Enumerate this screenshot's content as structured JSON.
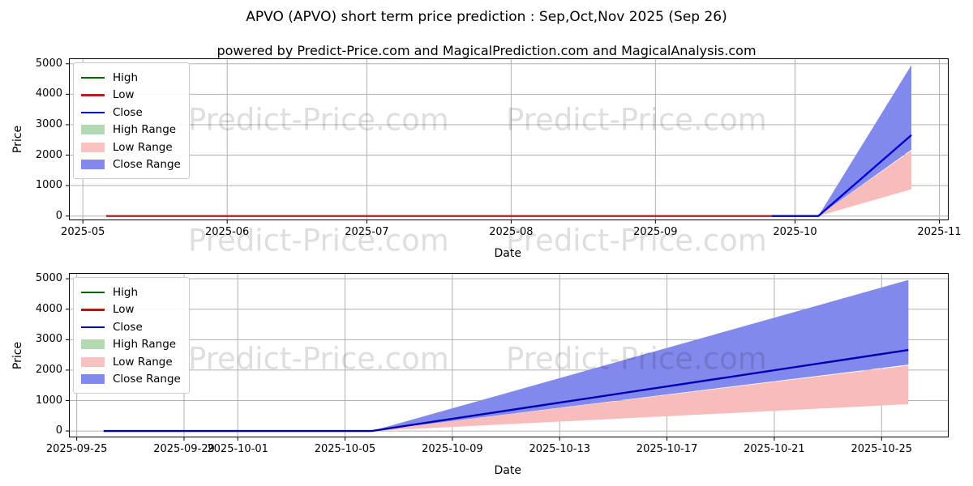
{
  "title": "APVO (APVO) short term price prediction : Sep,Oct,Nov 2025 (Sep 26)",
  "subtitle": "powered by Predict-Price.com and MagicalPrediction.com and MagicalAnalysis.com",
  "watermark": {
    "text": "Predict-Price.com"
  },
  "colors": {
    "grid": "#b0b0b0",
    "spine": "#000000",
    "watermark": "rgba(0,0,0,0.13)",
    "legend_border": "#cccccc"
  },
  "chart_data": [
    {
      "type": "line",
      "name": "full-history-chart",
      "xlabel": "Date",
      "ylabel": "Price",
      "x_domain": [
        "2025-04-28",
        "2025-11-03"
      ],
      "y_domain": [
        -140,
        5180
      ],
      "grid": true,
      "legend_position": "upper-left",
      "x_ticks": [
        {
          "date": "2025-05-01",
          "label": "2025-05"
        },
        {
          "date": "2025-06-01",
          "label": "2025-06"
        },
        {
          "date": "2025-07-01",
          "label": "2025-07"
        },
        {
          "date": "2025-08-01",
          "label": "2025-08"
        },
        {
          "date": "2025-09-01",
          "label": "2025-09"
        },
        {
          "date": "2025-10-01",
          "label": "2025-10"
        },
        {
          "date": "2025-11-01",
          "label": "2025-11"
        }
      ],
      "y_ticks": [
        0,
        1000,
        2000,
        3000,
        4000,
        5000
      ],
      "legend": [
        {
          "label": "High",
          "type": "line",
          "color": "#006400"
        },
        {
          "label": "Low",
          "type": "line",
          "color": "#b22222"
        },
        {
          "label": "Close",
          "type": "line",
          "color": "#0000cd"
        },
        {
          "label": "High Range",
          "type": "patch",
          "color": "#b3d9b3"
        },
        {
          "label": "Low Range",
          "type": "patch",
          "color": "#f9c2c2"
        },
        {
          "label": "Close Range",
          "type": "patch",
          "color": "#8289ec"
        }
      ],
      "bands": [
        {
          "name": "Low Range",
          "color": "#f8bcbc",
          "upper": [
            [
              "2025-10-06",
              2
            ],
            [
              "2025-10-26",
              2150
            ]
          ],
          "lower": [
            [
              "2025-10-06",
              2
            ],
            [
              "2025-10-26",
              880
            ]
          ]
        },
        {
          "name": "Close Range",
          "color": "#8289ec",
          "upper": [
            [
              "2025-10-06",
              2
            ],
            [
              "2025-10-26",
              4960
            ]
          ],
          "lower": [
            [
              "2025-10-06",
              2
            ],
            [
              "2025-10-26",
              2180
            ]
          ]
        }
      ],
      "lines": [
        {
          "name": "Low",
          "color": "#b22222",
          "points": [
            [
              "2025-05-06",
              2
            ],
            [
              "2025-09-26",
              2
            ]
          ]
        },
        {
          "name": "Close",
          "color": "#0000cd",
          "points": [
            [
              "2025-09-26",
              2
            ],
            [
              "2025-10-06",
              2
            ],
            [
              "2025-10-26",
              2660
            ]
          ]
        }
      ]
    },
    {
      "type": "line",
      "name": "prediction-zoom-chart",
      "xlabel": "Date",
      "ylabel": "Price",
      "x_domain": [
        "2025-09-24T17:00:00Z",
        "2025-10-27T12:00:00Z"
      ],
      "y_domain": [
        -210,
        5190
      ],
      "grid": true,
      "legend_position": "upper-left",
      "x_ticks": [
        {
          "date": "2025-09-25",
          "label": "2025-09-25"
        },
        {
          "date": "2025-09-29",
          "label": "2025-09-29"
        },
        {
          "date": "2025-10-01",
          "label": "2025-10-01"
        },
        {
          "date": "2025-10-05",
          "label": "2025-10-05"
        },
        {
          "date": "2025-10-09",
          "label": "2025-10-09"
        },
        {
          "date": "2025-10-13",
          "label": "2025-10-13"
        },
        {
          "date": "2025-10-17",
          "label": "2025-10-17"
        },
        {
          "date": "2025-10-21",
          "label": "2025-10-21"
        },
        {
          "date": "2025-10-25",
          "label": "2025-10-25"
        }
      ],
      "y_ticks": [
        0,
        1000,
        2000,
        3000,
        4000,
        5000
      ],
      "legend": [
        {
          "label": "High",
          "type": "line",
          "color": "#006400"
        },
        {
          "label": "Low",
          "type": "line",
          "color": "#dd0000"
        },
        {
          "label": "Close",
          "type": "line",
          "color": "#0000b0"
        },
        {
          "label": "High Range",
          "type": "patch",
          "color": "#b3d9b3"
        },
        {
          "label": "Low Range",
          "type": "patch",
          "color": "#f9c2c2"
        },
        {
          "label": "Close Range",
          "type": "patch",
          "color": "#8289ec"
        }
      ],
      "bands": [
        {
          "name": "Low Range",
          "color": "#f8bcbc",
          "upper": [
            [
              "2025-10-06",
              2
            ],
            [
              "2025-10-26",
              2150
            ]
          ],
          "lower": [
            [
              "2025-10-06",
              2
            ],
            [
              "2025-10-26",
              880
            ]
          ]
        },
        {
          "name": "Close Range",
          "color": "#8289ec",
          "upper": [
            [
              "2025-10-06",
              2
            ],
            [
              "2025-10-26",
              4960
            ]
          ],
          "lower": [
            [
              "2025-10-06",
              2
            ],
            [
              "2025-10-26",
              2180
            ]
          ]
        }
      ],
      "lines": [
        {
          "name": "Close",
          "color": "#0000b0",
          "points": [
            [
              "2025-09-26",
              2
            ],
            [
              "2025-10-06",
              2
            ],
            [
              "2025-10-26",
              2660
            ]
          ]
        }
      ]
    }
  ]
}
